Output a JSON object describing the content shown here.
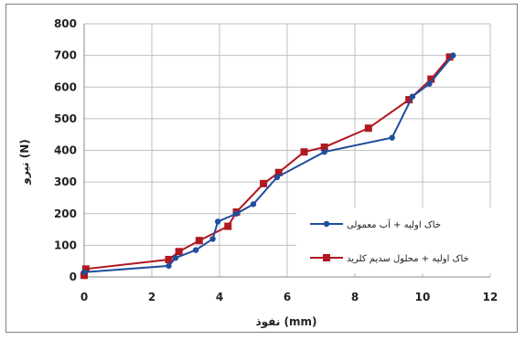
{
  "chart_data": {
    "type": "line",
    "title": "",
    "xlabel": "نفوذ (mm)",
    "ylabel": "نیرو (N)",
    "xlim": [
      0,
      12
    ],
    "ylim": [
      0,
      800
    ],
    "x_ticks": [
      0,
      2,
      4,
      6,
      8,
      10,
      12
    ],
    "y_ticks": [
      0,
      100,
      200,
      300,
      400,
      500,
      600,
      700,
      800
    ],
    "x_tick_labels": [
      "0",
      "2",
      "4",
      "6",
      "8",
      "10",
      "12"
    ],
    "y_tick_labels": [
      "0",
      "100",
      "200",
      "300",
      "400",
      "500",
      "600",
      "700",
      "800"
    ],
    "grid": true,
    "legend_position": "center-right",
    "series": [
      {
        "name": "خاک اولیه + آب معمولی",
        "color": "#1f4e9c",
        "marker": "circle",
        "x": [
          0,
          2.5,
          2.7,
          3.3,
          3.8,
          3.95,
          4.5,
          5.0,
          5.7,
          7.1,
          9.1,
          9.7,
          10.2,
          10.9
        ],
        "y": [
          15,
          35,
          60,
          85,
          120,
          175,
          200,
          230,
          315,
          395,
          440,
          570,
          610,
          700
        ]
      },
      {
        "name": "خاک اولیه + محلول سدیم کلرید",
        "color": "#b01820",
        "marker": "square",
        "x": [
          0,
          0.05,
          2.5,
          2.8,
          3.4,
          4.25,
          4.5,
          5.3,
          5.75,
          6.5,
          7.1,
          8.4,
          9.6,
          10.25,
          10.8
        ],
        "y": [
          5,
          25,
          55,
          80,
          115,
          160,
          205,
          295,
          330,
          395,
          410,
          470,
          560,
          625,
          695
        ]
      }
    ]
  }
}
